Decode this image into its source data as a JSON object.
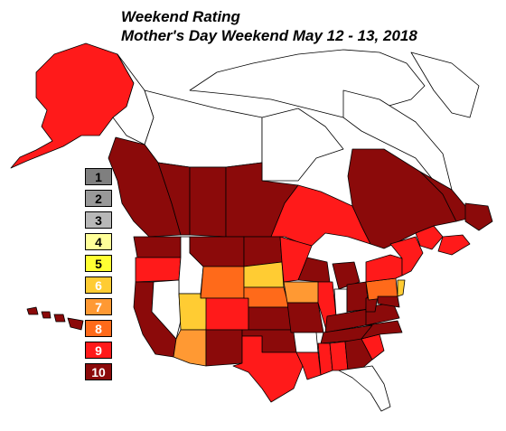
{
  "title": {
    "line1": "Weekend Rating",
    "line2": "Mother's Day Weekend May 12 - 13, 2018"
  },
  "legend": [
    {
      "label": "1",
      "color": "#7f7f7f",
      "text_color": "#000000"
    },
    {
      "label": "2",
      "color": "#999999",
      "text_color": "#000000"
    },
    {
      "label": "3",
      "color": "#b8b8b8",
      "text_color": "#000000"
    },
    {
      "label": "4",
      "color": "#ffff99",
      "text_color": "#000000"
    },
    {
      "label": "5",
      "color": "#ffff33",
      "text_color": "#000000"
    },
    {
      "label": "6",
      "color": "#ffcc33",
      "text_color": "#ffffff"
    },
    {
      "label": "7",
      "color": "#ff9933",
      "text_color": "#ffffff"
    },
    {
      "label": "8",
      "color": "#ff6a1a",
      "text_color": "#ffffff"
    },
    {
      "label": "9",
      "color": "#ff1a1a",
      "text_color": "#ffffff"
    },
    {
      "label": "10",
      "color": "#8b0a0a",
      "text_color": "#ffffff"
    }
  ],
  "colors": {
    "r10": "#8b0a0a",
    "r9": "#ff1a1a",
    "r8": "#ff6a1a",
    "r7": "#ff9933",
    "r6": "#ffcc33",
    "r5": "#ffff33",
    "none": "#ffffff",
    "border": "#000000"
  }
}
